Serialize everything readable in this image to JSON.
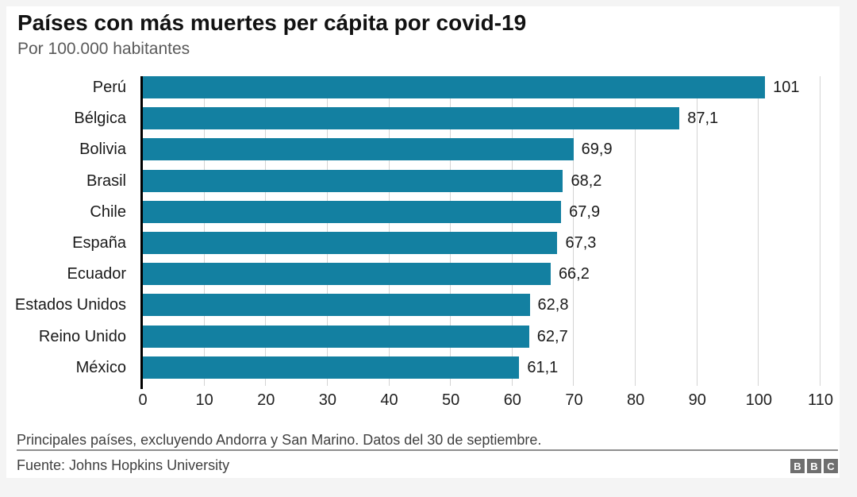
{
  "page": {
    "background_color": "#f4f4f4",
    "card_color": "#ffffff"
  },
  "header": {
    "title": "Países con más muertes per cápita por covid-19",
    "subtitle": "Por 100.000 habitantes"
  },
  "chart_data": {
    "type": "bar",
    "orientation": "horizontal",
    "title": "Países con más muertes per cápita por covid-19",
    "subtitle": "Por 100.000 habitantes",
    "categories": [
      "Perú",
      "Bélgica",
      "Bolivia",
      "Brasil",
      "Chile",
      "España",
      "Ecuador",
      "Estados Unidos",
      "Reino Unido",
      "México"
    ],
    "values": [
      101,
      87.1,
      69.9,
      68.2,
      67.9,
      67.3,
      66.2,
      62.8,
      62.7,
      61.1
    ],
    "value_labels": [
      "101",
      "87,1",
      "69,9",
      "68,2",
      "67,9",
      "67,3",
      "66,2",
      "62,8",
      "62,7",
      "61,1"
    ],
    "xlim": [
      0,
      110
    ],
    "x_ticks": [
      0,
      10,
      20,
      30,
      40,
      50,
      60,
      70,
      80,
      90,
      100,
      110
    ],
    "x_tick_labels": [
      "0",
      "10",
      "20",
      "30",
      "40",
      "50",
      "60",
      "70",
      "80",
      "90",
      "100",
      "110"
    ],
    "grid": true,
    "legend": false,
    "bar_color": "#1380A1",
    "axis_color": "#000000",
    "gridline_color": "#d4d4d4"
  },
  "footer": {
    "note": "Principales países, excluyendo Andorra y San Marino. Datos del 30 de septiembre.",
    "source": "Fuente: Johns Hopkins University",
    "logo_letters": [
      "B",
      "B",
      "C"
    ]
  }
}
